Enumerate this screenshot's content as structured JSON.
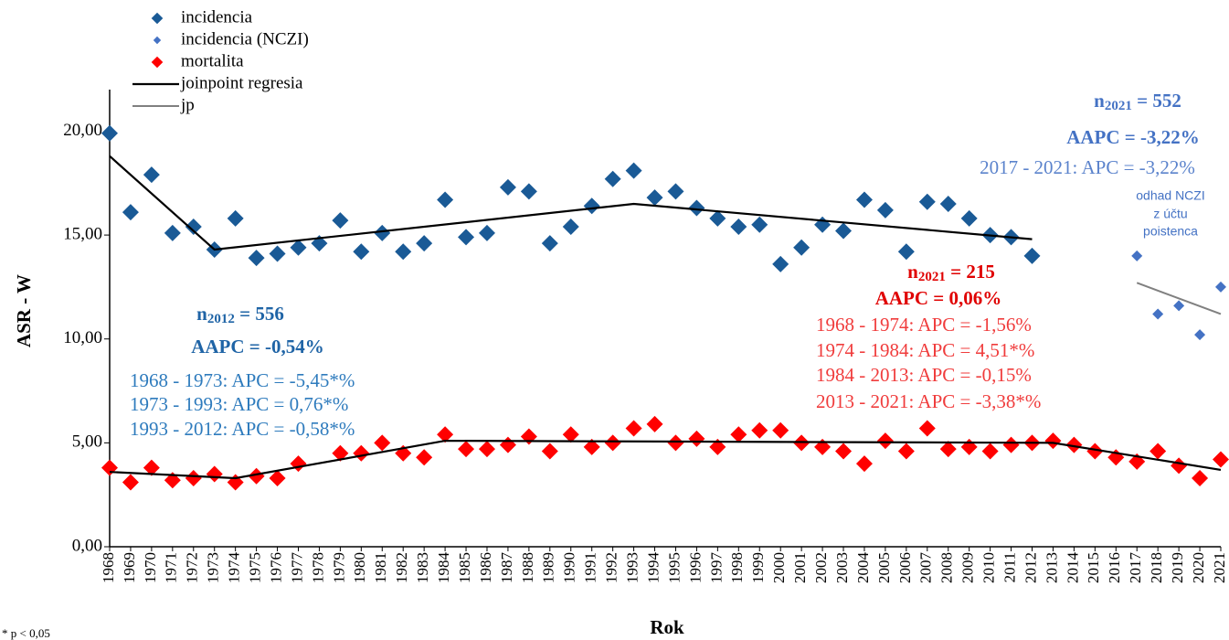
{
  "chart_data": {
    "type": "scatter",
    "ylabel": "ASR - W",
    "xlabel": "Rok",
    "footnote": "* p < 0,05",
    "categories": [
      "1968",
      "1969",
      "1970",
      "1971",
      "1972",
      "1973",
      "1974",
      "1975",
      "1976",
      "1977",
      "1978",
      "1979",
      "1980",
      "1981",
      "1982",
      "1983",
      "1984",
      "1985",
      "1986",
      "1987",
      "1988",
      "1989",
      "1990",
      "1991",
      "1992",
      "1993",
      "1994",
      "1995",
      "1996",
      "1997",
      "1998",
      "1999",
      "2000",
      "2001",
      "2002",
      "2003",
      "2004",
      "2005",
      "2006",
      "2007",
      "2008",
      "2009",
      "2010",
      "2011",
      "2012",
      "2013",
      "2014",
      "2015",
      "2016",
      "2017",
      "2018",
      "2019",
      "2020",
      "2021"
    ],
    "ylim": [
      0,
      22
    ],
    "yticks": [
      {
        "value": 0,
        "label": "0,00"
      },
      {
        "value": 5,
        "label": "5,00"
      },
      {
        "value": 10,
        "label": "10,00"
      },
      {
        "value": 15,
        "label": "15,00"
      },
      {
        "value": 20,
        "label": "20,00"
      }
    ],
    "series": [
      {
        "name": "incidencia",
        "color": "#1a5a96",
        "size": 18,
        "values": [
          19.9,
          16.1,
          17.9,
          15.1,
          15.4,
          14.3,
          15.8,
          13.9,
          14.1,
          14.4,
          14.6,
          15.7,
          14.2,
          15.1,
          14.2,
          14.6,
          16.7,
          14.9,
          15.1,
          17.3,
          17.1,
          14.6,
          15.4,
          16.4,
          17.7,
          18.1,
          16.8,
          17.1,
          16.3,
          15.8,
          15.4,
          15.5,
          13.6,
          14.4,
          15.5,
          15.2,
          16.7,
          16.2,
          14.2,
          16.6,
          16.5,
          15.8,
          15.0,
          14.9,
          14.0,
          null,
          null,
          null,
          null,
          null,
          null,
          null,
          null,
          null
        ]
      },
      {
        "name": "incidencia (NCZI)",
        "color": "#4472c4",
        "size": 12,
        "values": [
          null,
          null,
          null,
          null,
          null,
          null,
          null,
          null,
          null,
          null,
          null,
          null,
          null,
          null,
          null,
          null,
          null,
          null,
          null,
          null,
          null,
          null,
          null,
          null,
          null,
          null,
          null,
          null,
          null,
          null,
          null,
          null,
          null,
          null,
          null,
          null,
          null,
          null,
          null,
          null,
          null,
          null,
          null,
          null,
          null,
          null,
          null,
          null,
          null,
          14.0,
          11.2,
          11.6,
          10.2,
          12.5
        ]
      },
      {
        "name": "mortalita",
        "color": "#ff0000",
        "size": 18,
        "values": [
          3.8,
          3.1,
          3.8,
          3.2,
          3.3,
          3.5,
          3.1,
          3.4,
          3.3,
          4.0,
          null,
          4.5,
          4.5,
          5.0,
          4.5,
          4.3,
          5.4,
          4.7,
          4.7,
          4.9,
          5.3,
          4.6,
          5.4,
          4.8,
          5.0,
          5.7,
          5.9,
          5.0,
          5.2,
          4.8,
          5.4,
          5.6,
          5.6,
          5.0,
          4.8,
          4.6,
          4.0,
          5.1,
          4.6,
          5.7,
          4.7,
          4.8,
          4.6,
          4.9,
          5.0,
          5.1,
          4.9,
          4.6,
          4.3,
          4.1,
          4.6,
          3.9,
          3.3,
          4.2
        ]
      }
    ],
    "lines": [
      {
        "name": "joinpoint regresia",
        "color": "#000000",
        "width": 2.2,
        "segments": [
          {
            "x": [
              1968,
              1973,
              1993,
              2012
            ],
            "values": [
              18.8,
              14.3,
              16.5,
              14.8
            ]
          },
          {
            "x": [
              1968,
              1974,
              1984,
              2013,
              2021
            ],
            "values": [
              3.6,
              3.3,
              5.1,
              5.0,
              3.7
            ]
          }
        ]
      },
      {
        "name": "jp",
        "color": "#808080",
        "width": 2,
        "segments": [
          {
            "x": [
              2017,
              2021
            ],
            "values": [
              12.7,
              11.2
            ]
          }
        ]
      }
    ],
    "annotations": [
      {
        "prefix": "n",
        "sub": "2012",
        "suffix": " = 556",
        "color": "#1f64a6",
        "bold": true
      },
      {
        "text": "AAPC = -0,54%",
        "color": "#1f64a6",
        "bold": true
      },
      {
        "text": "1968 - 1973: APC = -5,45*%",
        "color": "#2e7bbd"
      },
      {
        "text": "1973 - 1993: APC = 0,76*%",
        "color": "#2e7bbd"
      },
      {
        "text": "1993 - 2012: APC = -0,58*%",
        "color": "#2e7bbd"
      },
      {
        "prefix": "n",
        "sub": "2021",
        "suffix": " = 215",
        "color": "#e00000",
        "bold": true
      },
      {
        "text": "AAPC = 0,06%",
        "color": "#e00000",
        "bold": true
      },
      {
        "text": "1968 - 1974: APC = -1,56%",
        "color": "#f03c3c"
      },
      {
        "text": "1974 - 1984: APC = 4,51*%",
        "color": "#f03c3c"
      },
      {
        "text": "1984 - 2013: APC = -0,15%",
        "color": "#f03c3c"
      },
      {
        "text": "2013 - 2021: APC = -3,38*%",
        "color": "#f03c3c"
      },
      {
        "prefix": "n",
        "sub": "2021",
        "suffix": " = 552",
        "color": "#4472c4",
        "bold": true
      },
      {
        "text": "AAPC = -3,22%",
        "color": "#4472c4",
        "bold": true
      },
      {
        "text": "2017 - 2021: APC = -3,22%",
        "color": "#5b83cc"
      },
      {
        "text": "odhad NCZI",
        "color": "#4472c4",
        "small": true
      },
      {
        "text": "z účtu",
        "color": "#4472c4",
        "small": true
      },
      {
        "text": "poistenca",
        "color": "#4472c4",
        "small": true
      }
    ]
  }
}
